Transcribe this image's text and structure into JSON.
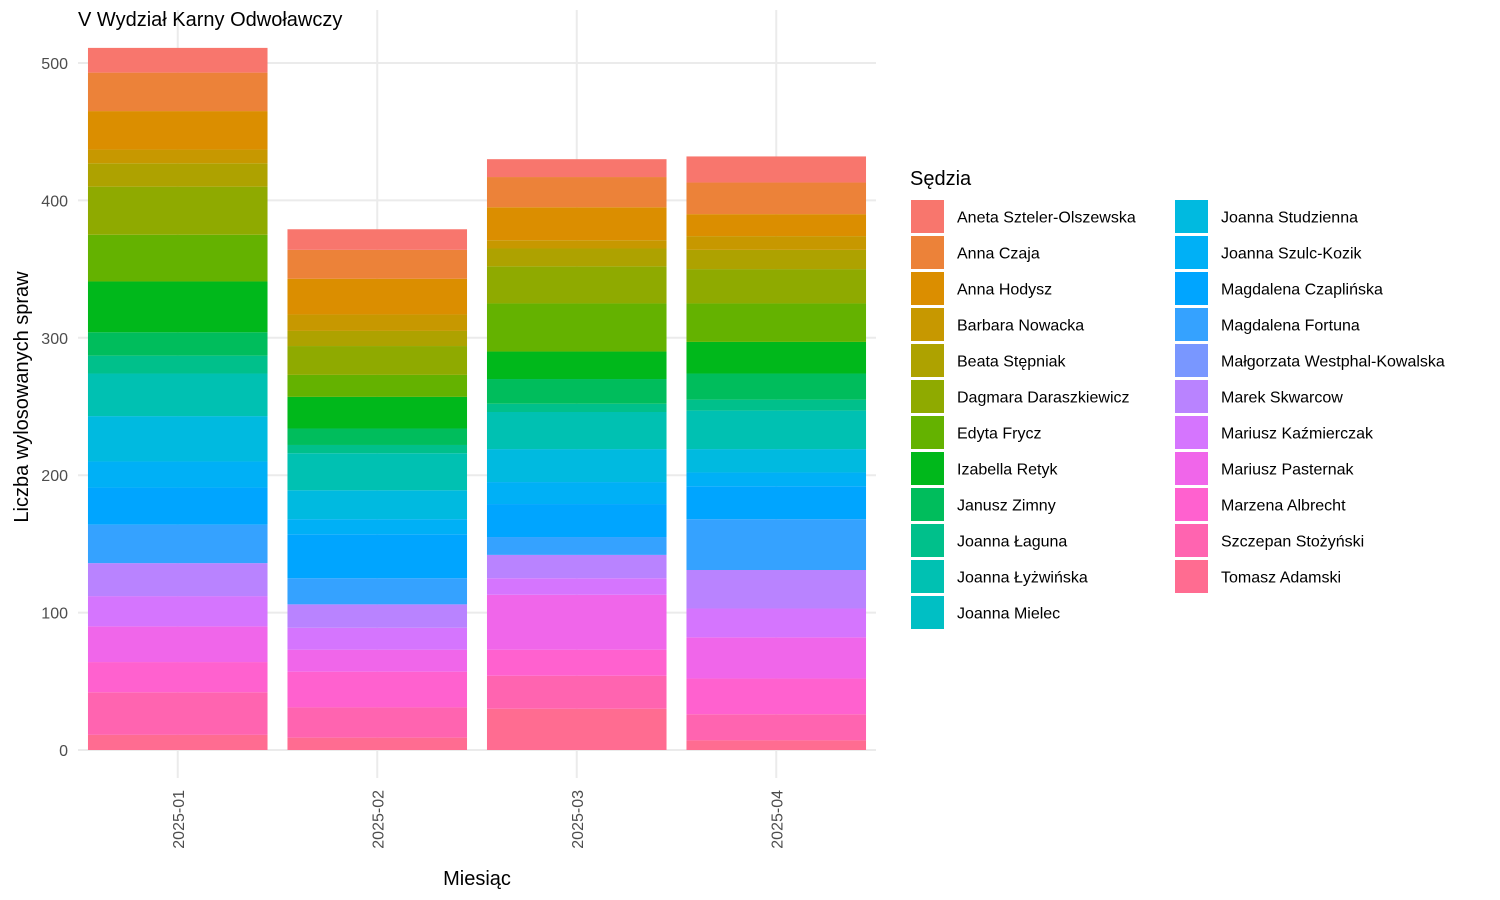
{
  "chart_data": {
    "type": "bar",
    "stacked": true,
    "title": "V Wydział Karny Odwoławczy",
    "xlabel": "Miesiąc",
    "ylabel": "Liczba wylosowanych spraw",
    "ylim": [
      0,
      520
    ],
    "yticks": [
      0,
      100,
      200,
      300,
      400,
      500
    ],
    "grid": true,
    "legend": {
      "title": "Sędzia",
      "placement": "right",
      "columns": 2
    },
    "categories": [
      "2025-01",
      "2025-02",
      "2025-03",
      "2025-04"
    ],
    "series": [
      {
        "name": "Aneta Szteler-Olszewska",
        "color": "#F8766D",
        "values": [
          18,
          15,
          13,
          19
        ]
      },
      {
        "name": "Anna Czaja",
        "color": "#EC8239",
        "values": [
          28,
          21,
          22,
          23
        ]
      },
      {
        "name": "Anna Hodysz",
        "color": "#DB8E00",
        "values": [
          28,
          26,
          24,
          16
        ]
      },
      {
        "name": "Barbara Nowacka",
        "color": "#C79800",
        "values": [
          10,
          12,
          6,
          10
        ]
      },
      {
        "name": "Beata Stępniak",
        "color": "#AEA200",
        "values": [
          17,
          11,
          13,
          14
        ]
      },
      {
        "name": "Dagmara Daraszkiewicz",
        "color": "#8FAA00",
        "values": [
          35,
          21,
          27,
          25
        ]
      },
      {
        "name": "Edyta Frycz",
        "color": "#64B200",
        "values": [
          34,
          16,
          35,
          28
        ]
      },
      {
        "name": "Izabella Retyk",
        "color": "#00B81B",
        "values": [
          37,
          23,
          20,
          23
        ]
      },
      {
        "name": "Janusz Zimny",
        "color": "#00BD5C",
        "values": [
          17,
          12,
          18,
          19
        ]
      },
      {
        "name": "Joanna Łaguna",
        "color": "#00C08B",
        "values": [
          13,
          6,
          6,
          8
        ]
      },
      {
        "name": "Joanna Łyżwińska",
        "color": "#00C1B2",
        "values": [
          31,
          27,
          27,
          28
        ]
      },
      {
        "name": "Joanna Mielec",
        "color": "#00BFC4",
        "values": [
          0,
          0,
          0,
          0
        ]
      },
      {
        "name": "Joanna Studzienna",
        "color": "#00BAE0",
        "values": [
          33,
          21,
          24,
          17
        ]
      },
      {
        "name": "Joanna Szulc-Kozik",
        "color": "#00B0F6",
        "values": [
          19,
          11,
          16,
          10
        ]
      },
      {
        "name": "Magdalena Czaplińska",
        "color": "#00A5FF",
        "values": [
          27,
          32,
          24,
          24
        ]
      },
      {
        "name": "Magdalena Fortuna",
        "color": "#35A2FF",
        "values": [
          28,
          19,
          13,
          37
        ]
      },
      {
        "name": "Małgorzata Westphal-Kowalska",
        "color": "#7997FF",
        "values": [
          0,
          0,
          0,
          0
        ]
      },
      {
        "name": "Marek Skwarcow",
        "color": "#B983FF",
        "values": [
          24,
          17,
          17,
          28
        ]
      },
      {
        "name": "Mariusz Kaźmierczak",
        "color": "#D575FE",
        "values": [
          22,
          16,
          12,
          21
        ]
      },
      {
        "name": "Mariusz Pasternak",
        "color": "#F066EA",
        "values": [
          26,
          16,
          40,
          30
        ]
      },
      {
        "name": "Marzena Albrecht",
        "color": "#FF61CF",
        "values": [
          22,
          26,
          19,
          26
        ]
      },
      {
        "name": "Szczepan Stożyński",
        "color": "#FF64B0",
        "values": [
          31,
          22,
          24,
          19
        ]
      },
      {
        "name": "Tomasz Adamski",
        "color": "#FF6C91",
        "values": [
          11,
          9,
          30,
          7
        ]
      }
    ]
  }
}
